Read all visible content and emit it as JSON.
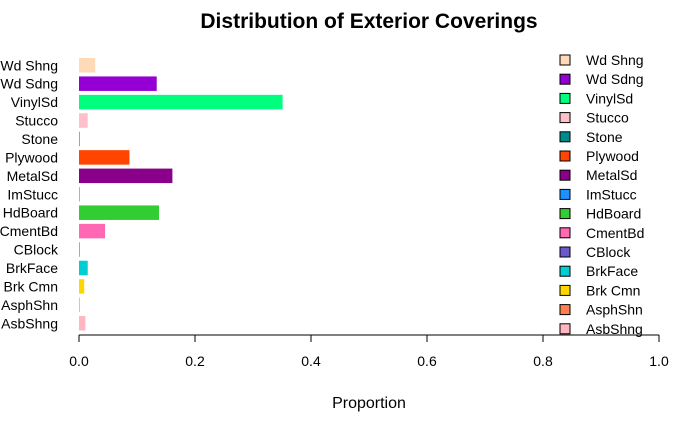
{
  "chart_data": {
    "type": "bar",
    "orientation": "horizontal",
    "title": "Distribution of Exterior Coverings",
    "xlabel": "Proportion",
    "ylabel": "",
    "xlim": [
      0,
      1
    ],
    "xticks": [
      "0.0",
      "0.2",
      "0.4",
      "0.6",
      "0.8",
      "1.0"
    ],
    "categories": [
      "Wd Shng",
      "Wd Sdng",
      "VinylSd",
      "Stucco",
      "Stone",
      "Plywood",
      "MetalSd",
      "ImStucc",
      "HdBoard",
      "CmentBd",
      "CBlock",
      "BrkFace",
      "Brk Cmn",
      "AsphShn",
      "AsbShng"
    ],
    "values": [
      0.028,
      0.134,
      0.351,
      0.015,
      0.001,
      0.087,
      0.161,
      0.001,
      0.138,
      0.045,
      0.001,
      0.015,
      0.009,
      0.001,
      0.011
    ],
    "colors": [
      "#FFDAB9",
      "#9400D3",
      "#00FF7F",
      "#FFC0CB",
      "#008B8B",
      "#FF4500",
      "#8B008B",
      "#1E90FF",
      "#32CD32",
      "#FF69B4",
      "#6A5ACD",
      "#00CED1",
      "#FFD700",
      "#FF7F50",
      "#FFB6C1"
    ],
    "legend": {
      "position": "right",
      "labels": [
        "Wd Shng",
        "Wd Sdng",
        "VinylSd",
        "Stucco",
        "Stone",
        "Plywood",
        "MetalSd",
        "ImStucc",
        "HdBoard",
        "CmentBd",
        "CBlock",
        "BrkFace",
        "Brk Cmn",
        "AsphShn",
        "AsbShng"
      ]
    },
    "grid": false
  }
}
